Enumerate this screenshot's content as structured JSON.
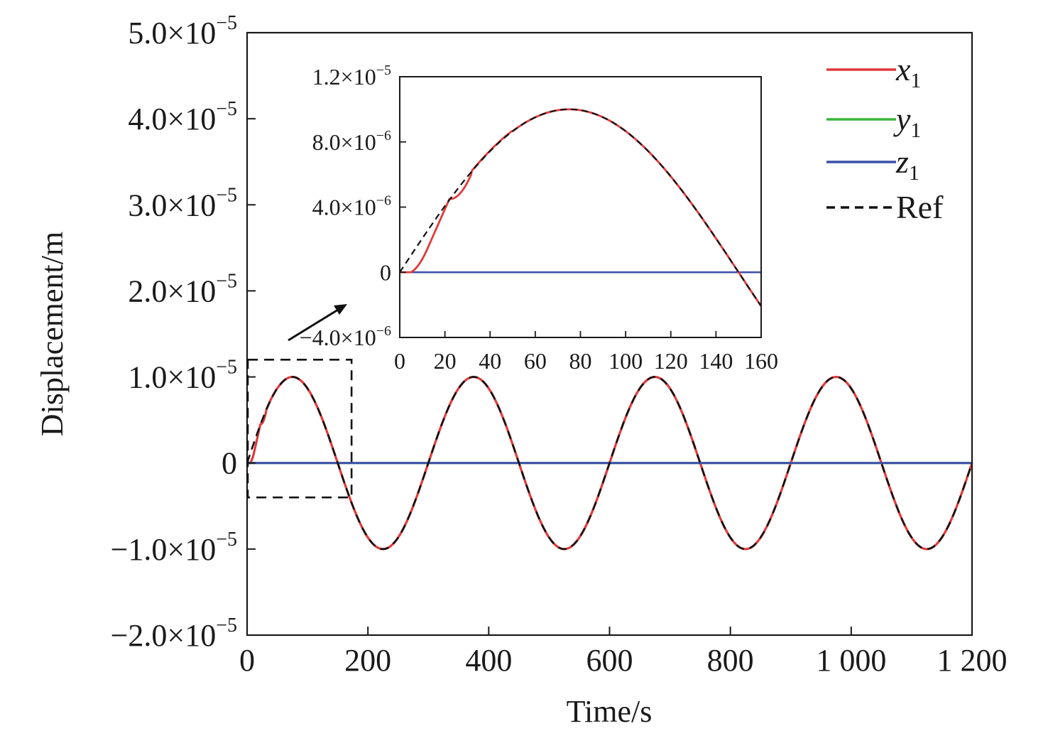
{
  "chart_data": [
    {
      "id": "main",
      "type": "line",
      "xlabel": "Time/s",
      "ylabel": "Displacement/m",
      "xlim": [
        0,
        1200
      ],
      "ylim": [
        -2e-05,
        5e-05
      ],
      "xticks": [
        0,
        200,
        400,
        600,
        800,
        1000,
        1200
      ],
      "xtick_labels": [
        "0",
        "200",
        "400",
        "600",
        "800",
        "1 000",
        "1 200"
      ],
      "yticks": [
        {
          "value": -2e-05,
          "mantissa": "−2.0×10",
          "exponent": "−5"
        },
        {
          "value": -1e-05,
          "mantissa": "−1.0×10",
          "exponent": "−5"
        },
        {
          "value": 0,
          "mantissa": "0",
          "exponent": ""
        },
        {
          "value": 1e-05,
          "mantissa": "1.0×10",
          "exponent": "−5"
        },
        {
          "value": 2e-05,
          "mantissa": "2.0×10",
          "exponent": "−5"
        },
        {
          "value": 3e-05,
          "mantissa": "3.0×10",
          "exponent": "−5"
        },
        {
          "value": 4e-05,
          "mantissa": "4.0×10",
          "exponent": "−5"
        },
        {
          "value": 5e-05,
          "mantissa": "5.0×10",
          "exponent": "−5"
        }
      ],
      "series": [
        {
          "key": "x1",
          "color": "#e03a3a",
          "style": "solid",
          "description_points": [
            [
              0,
              0
            ],
            [
              5,
              0.0
            ],
            [
              10,
              2e-07
            ],
            [
              20,
              4.2e-06
            ],
            [
              27,
              5e-06
            ],
            [
              40,
              6.9e-06
            ],
            [
              60,
              9e-06
            ],
            [
              75,
              1e-05
            ],
            [
              100,
              9e-06
            ],
            [
              150,
              0.0
            ],
            [
              225,
              -1e-05
            ],
            [
              300,
              0
            ],
            [
              375,
              1e-05
            ],
            [
              450,
              0
            ],
            [
              525,
              -1e-05
            ],
            [
              600,
              0
            ],
            [
              675,
              1e-05
            ],
            [
              750,
              0
            ],
            [
              825,
              -1e-05
            ],
            [
              900,
              0
            ],
            [
              975,
              1e-05
            ],
            [
              1050,
              0
            ],
            [
              1125,
              -1e-05
            ],
            [
              1200,
              0
            ]
          ]
        },
        {
          "key": "y1",
          "color": "#3cb43c",
          "style": "solid",
          "constant": 0
        },
        {
          "key": "z1",
          "color": "#3a4fa8",
          "style": "solid",
          "constant": 0
        },
        {
          "key": "Ref",
          "color": "#111111",
          "style": "dashed",
          "description": "sine, amplitude 1.0e-5, period 300 s, zero at t=0"
        }
      ],
      "zoom_box": {
        "x": [
          0,
          160
        ],
        "y": [
          -4e-06,
          1.2e-05
        ]
      }
    },
    {
      "id": "inset",
      "type": "line",
      "xlim": [
        0,
        160
      ],
      "ylim": [
        -4e-06,
        1.2e-05
      ],
      "xticks": [
        0,
        20,
        40,
        60,
        80,
        100,
        120,
        140,
        160
      ],
      "xtick_labels": [
        "0",
        "20",
        "40",
        "60",
        "80",
        "100",
        "120",
        "140",
        "160"
      ],
      "yticks": [
        {
          "value": -4e-06,
          "mantissa": "−4.0×10",
          "exponent": "−6"
        },
        {
          "value": 0,
          "mantissa": "0",
          "exponent": ""
        },
        {
          "value": 4e-06,
          "mantissa": "4.0×10",
          "exponent": "−6"
        },
        {
          "value": 8e-06,
          "mantissa": "8.0×10",
          "exponent": "−6"
        },
        {
          "value": 1.2e-05,
          "mantissa": "1.2×10",
          "exponent": "−5"
        }
      ]
    }
  ],
  "legend": {
    "placement": "top-right",
    "entries": [
      {
        "var": "x",
        "sub": "1",
        "color": "#e03a3a",
        "style": "solid",
        "italic": true
      },
      {
        "var": "y",
        "sub": "1",
        "color": "#3cb43c",
        "style": "solid",
        "italic": true
      },
      {
        "var": "z",
        "sub": "1",
        "color": "#3a4fa8",
        "style": "solid",
        "italic": true
      },
      {
        "var": "Ref",
        "sub": "",
        "color": "#111111",
        "style": "dashed",
        "italic": false
      }
    ]
  }
}
